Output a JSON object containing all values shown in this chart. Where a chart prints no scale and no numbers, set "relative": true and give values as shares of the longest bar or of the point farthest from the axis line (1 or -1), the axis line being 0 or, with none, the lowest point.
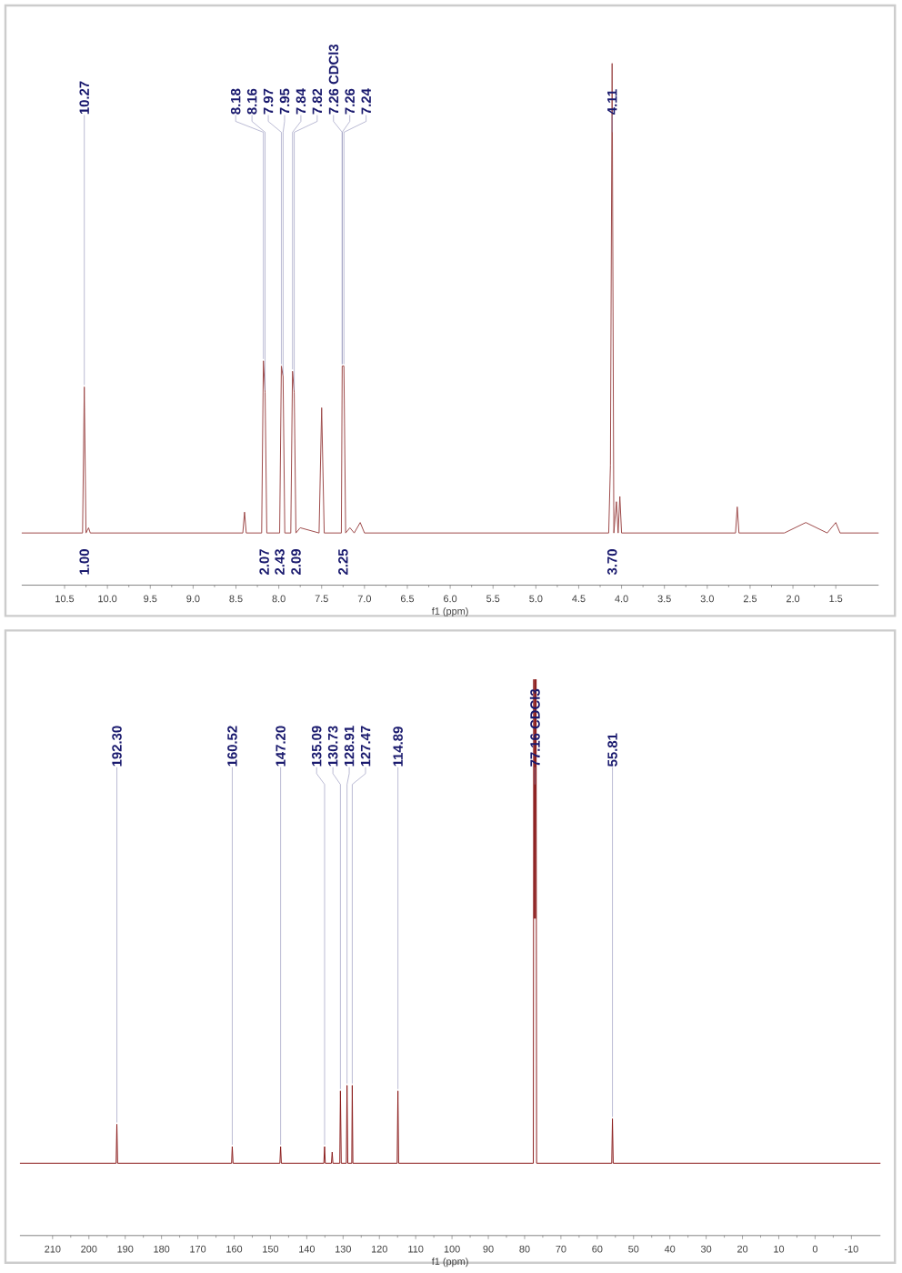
{
  "chart_data": [
    {
      "type": "line",
      "xlabel": "f1 (ppm)",
      "relative": true,
      "xlim": [
        11.0,
        1.0
      ],
      "xticks": [
        10.5,
        {
          "value": 10,
          "label": "10.0"
        },
        9.5,
        {
          "value": 9,
          "label": "9.0"
        },
        8.5,
        {
          "value": 8,
          "label": "8.0"
        },
        7.5,
        {
          "value": 7,
          "label": "7.0"
        },
        6.5,
        {
          "value": 6,
          "label": "6.0"
        },
        5.5,
        {
          "value": 5,
          "label": "5.0"
        },
        4.5,
        {
          "value": 4,
          "label": "4.0"
        },
        3.5,
        {
          "value": 3,
          "label": "3.0"
        },
        2.5,
        {
          "value": 2,
          "label": "2.0"
        },
        1.5
      ],
      "x": [
        11.0,
        10.29,
        10.27,
        10.25,
        10.22,
        10.2,
        8.42,
        8.4,
        8.38,
        8.2,
        8.18,
        8.16,
        8.14,
        7.99,
        7.97,
        7.95,
        7.93,
        7.86,
        7.84,
        7.82,
        7.8,
        7.75,
        7.53,
        7.5,
        7.47,
        7.27,
        7.26,
        7.24,
        7.22,
        7.17,
        7.12,
        7.05,
        7.0,
        4.15,
        4.13,
        4.11,
        4.09,
        4.06,
        4.04,
        4.02,
        4.0,
        2.67,
        2.65,
        2.63,
        2.1,
        1.85,
        1.6,
        1.5,
        1.45,
        1.0
      ],
      "series": [
        {
          "color": "#9e4a4a",
          "values": [
            0.1,
            0.1,
            0.38,
            0.1,
            0.11,
            0.1,
            0.1,
            0.14,
            0.1,
            0.1,
            0.43,
            0.37,
            0.1,
            0.1,
            0.42,
            0.4,
            0.1,
            0.1,
            0.41,
            0.37,
            0.1,
            0.11,
            0.1,
            0.34,
            0.1,
            0.1,
            0.42,
            0.42,
            0.1,
            0.11,
            0.1,
            0.12,
            0.1,
            0.1,
            0.23,
            1.0,
            0.1,
            0.16,
            0.1,
            0.17,
            0.1,
            0.1,
            0.15,
            0.1,
            0.1,
            0.12,
            0.1,
            0.12,
            0.1,
            0.1
          ]
        }
      ],
      "annotations": [
        {
          "text": "10.27",
          "x": 10.27,
          "y": 0.38
        },
        {
          "text": "8.18",
          "x": 8.18,
          "y": 0.43
        },
        {
          "text": "8.16",
          "x": 8.16,
          "y": 0.37
        },
        {
          "text": "7.97",
          "x": 7.97,
          "y": 0.42
        },
        {
          "text": "7.95",
          "x": 7.95,
          "y": 0.4
        },
        {
          "text": "7.84",
          "x": 7.84,
          "y": 0.41
        },
        {
          "text": "7.82",
          "x": 7.82,
          "y": 0.37
        },
        {
          "text": "7.26 CDCl3",
          "x": 7.26,
          "y": 0.42
        },
        {
          "text": "7.26",
          "x": 7.26,
          "y": 0.42
        },
        {
          "text": "7.24",
          "x": 7.24,
          "y": 0.42
        },
        {
          "text": "4.11",
          "x": 4.11,
          "y": 1.0
        },
        {
          "text": "1.00",
          "x": 10.27,
          "y": 0.1
        },
        {
          "text": "2.07",
          "x": 8.17,
          "y": 0.1
        },
        {
          "text": "2.43",
          "x": 7.96,
          "y": 0.1
        },
        {
          "text": "2.09",
          "x": 7.83,
          "y": 0.1
        },
        {
          "text": "2.25",
          "x": 7.25,
          "y": 0.1
        },
        {
          "text": "3.70",
          "x": 4.11,
          "y": 0.1
        }
      ]
    },
    {
      "type": "line",
      "xlabel": "f1 (ppm)",
      "relative": true,
      "xlim": [
        219,
        -18
      ],
      "xticks": [
        210,
        200,
        190,
        180,
        170,
        160,
        150,
        140,
        130,
        120,
        110,
        100,
        90,
        80,
        70,
        60,
        50,
        40,
        30,
        20,
        10,
        0,
        -10
      ],
      "x": [
        219,
        192.5,
        192.3,
        192.1,
        160.7,
        160.52,
        160.3,
        147.4,
        147.2,
        147.0,
        135.3,
        135.09,
        134.9,
        133.2,
        133.0,
        132.8,
        130.9,
        130.73,
        130.5,
        129.1,
        128.91,
        128.7,
        127.6,
        127.47,
        127.3,
        115.1,
        114.89,
        114.7,
        77.6,
        77.48,
        77.3,
        77.16,
        77.0,
        76.84,
        76.7,
        56.0,
        55.81,
        55.6,
        -18
      ],
      "series": [
        {
          "color": "#8b1c1c",
          "values": [
            0.13,
            0.13,
            0.2,
            0.13,
            0.13,
            0.16,
            0.13,
            0.13,
            0.16,
            0.13,
            0.13,
            0.16,
            0.13,
            0.13,
            0.15,
            0.13,
            0.13,
            0.26,
            0.13,
            0.13,
            0.27,
            0.13,
            0.13,
            0.27,
            0.13,
            0.13,
            0.26,
            0.13,
            0.13,
            1.0,
            0.57,
            1.0,
            0.57,
            1.0,
            0.13,
            0.13,
            0.21,
            0.13,
            0.13
          ]
        }
      ],
      "annotations": [
        {
          "text": "192.30",
          "x": 192.3,
          "y": 0.2
        },
        {
          "text": "160.52",
          "x": 160.52,
          "y": 0.16
        },
        {
          "text": "147.20",
          "x": 147.2,
          "y": 0.16
        },
        {
          "text": "135.09",
          "x": 135.09,
          "y": 0.16
        },
        {
          "text": "130.73",
          "x": 130.73,
          "y": 0.26
        },
        {
          "text": "128.91",
          "x": 128.91,
          "y": 0.27
        },
        {
          "text": "127.47",
          "x": 127.47,
          "y": 0.27
        },
        {
          "text": "114.89",
          "x": 114.89,
          "y": 0.26
        },
        {
          "text": "77.16 CDCl3",
          "x": 77.16,
          "y": 1.0
        },
        {
          "text": "55.81",
          "x": 55.81,
          "y": 0.21
        }
      ]
    }
  ]
}
